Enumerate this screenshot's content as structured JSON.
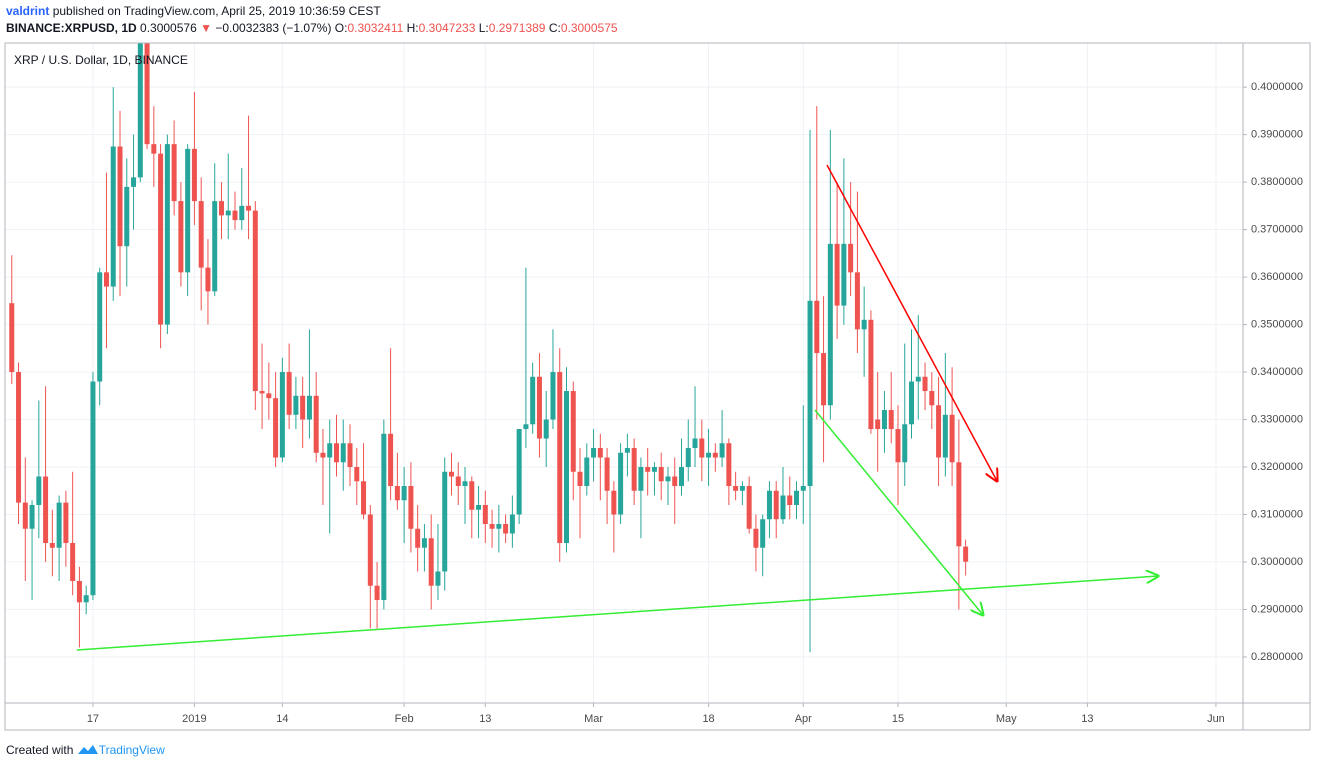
{
  "header": {
    "author": "valdrint",
    "published": "published on TradingView.com, April 25, 2019 10:36:59 CEST",
    "symbol": "BINANCE:XRPUSD, 1D",
    "last": "0.3000576",
    "arrow": "▼",
    "change": "−0.0032383 (−1.07%)",
    "ohlc": [
      {
        "label": "O:",
        "value": "0.3032411"
      },
      {
        "label": "H:",
        "value": "0.3047233"
      },
      {
        "label": "L:",
        "value": "0.2971389"
      },
      {
        "label": "C:",
        "value": "0.3000575"
      }
    ]
  },
  "chart_data": {
    "type": "candlestick",
    "title": "XRP / U.S. Dollar, 1D, BINANCE",
    "up_color": "#26a69a",
    "down_color": "#ef5350",
    "grid": true,
    "xlim": [
      "2018-12-04",
      "2019-06-05"
    ],
    "xticks": [
      {
        "value": "2018-12-17",
        "label": "17"
      },
      {
        "value": "2019-01-01",
        "label": "2019"
      },
      {
        "value": "2019-01-14",
        "label": "14"
      },
      {
        "value": "2019-02-01",
        "label": "Feb"
      },
      {
        "value": "2019-02-13",
        "label": "13"
      },
      {
        "value": "2019-03-01",
        "label": "Mar"
      },
      {
        "value": "2019-03-18",
        "label": "18"
      },
      {
        "value": "2019-04-01",
        "label": "Apr"
      },
      {
        "value": "2019-04-15",
        "label": "15"
      },
      {
        "value": "2019-05-01",
        "label": "May"
      },
      {
        "value": "2019-05-13",
        "label": "13"
      },
      {
        "value": "2019-06-01",
        "label": "Jun"
      }
    ],
    "ylim": [
      0.2703,
      0.4093
    ],
    "yticks": [
      {
        "value": 0.28,
        "label": "0.2800000"
      },
      {
        "value": 0.29,
        "label": "0.2900000"
      },
      {
        "value": 0.3,
        "label": "0.3000000"
      },
      {
        "value": 0.31,
        "label": "0.3100000"
      },
      {
        "value": 0.32,
        "label": "0.3200000"
      },
      {
        "value": 0.33,
        "label": "0.3300000"
      },
      {
        "value": 0.34,
        "label": "0.3400000"
      },
      {
        "value": 0.35,
        "label": "0.3500000"
      },
      {
        "value": 0.36,
        "label": "0.3600000"
      },
      {
        "value": 0.37,
        "label": "0.3700000"
      },
      {
        "value": 0.38,
        "label": "0.3800000"
      },
      {
        "value": 0.39,
        "label": "0.3900000"
      },
      {
        "value": 0.4,
        "label": "0.4000000"
      }
    ],
    "x": [
      "2018-12-05",
      "2018-12-06",
      "2018-12-07",
      "2018-12-08",
      "2018-12-09",
      "2018-12-10",
      "2018-12-11",
      "2018-12-12",
      "2018-12-13",
      "2018-12-14",
      "2018-12-15",
      "2018-12-16",
      "2018-12-17",
      "2018-12-18",
      "2018-12-19",
      "2018-12-20",
      "2018-12-21",
      "2018-12-22",
      "2018-12-23",
      "2018-12-24",
      "2018-12-25",
      "2018-12-26",
      "2018-12-27",
      "2018-12-28",
      "2018-12-29",
      "2018-12-30",
      "2018-12-31",
      "2019-01-01",
      "2019-01-02",
      "2019-01-03",
      "2019-01-04",
      "2019-01-05",
      "2019-01-06",
      "2019-01-07",
      "2019-01-08",
      "2019-01-09",
      "2019-01-10",
      "2019-01-11",
      "2019-01-12",
      "2019-01-13",
      "2019-01-14",
      "2019-01-15",
      "2019-01-16",
      "2019-01-17",
      "2019-01-18",
      "2019-01-19",
      "2019-01-20",
      "2019-01-21",
      "2019-01-22",
      "2019-01-23",
      "2019-01-24",
      "2019-01-25",
      "2019-01-26",
      "2019-01-27",
      "2019-01-28",
      "2019-01-29",
      "2019-01-30",
      "2019-01-31",
      "2019-02-01",
      "2019-02-02",
      "2019-02-03",
      "2019-02-04",
      "2019-02-05",
      "2019-02-06",
      "2019-02-07",
      "2019-02-08",
      "2019-02-09",
      "2019-02-10",
      "2019-02-11",
      "2019-02-12",
      "2019-02-13",
      "2019-02-14",
      "2019-02-15",
      "2019-02-16",
      "2019-02-17",
      "2019-02-18",
      "2019-02-19",
      "2019-02-20",
      "2019-02-21",
      "2019-02-22",
      "2019-02-23",
      "2019-02-24",
      "2019-02-25",
      "2019-02-26",
      "2019-02-27",
      "2019-02-28",
      "2019-03-01",
      "2019-03-02",
      "2019-03-03",
      "2019-03-04",
      "2019-03-05",
      "2019-03-06",
      "2019-03-07",
      "2019-03-08",
      "2019-03-09",
      "2019-03-10",
      "2019-03-11",
      "2019-03-12",
      "2019-03-13",
      "2019-03-14",
      "2019-03-15",
      "2019-03-16",
      "2019-03-17",
      "2019-03-18",
      "2019-03-19",
      "2019-03-20",
      "2019-03-21",
      "2019-03-22",
      "2019-03-23",
      "2019-03-24",
      "2019-03-25",
      "2019-03-26",
      "2019-03-27",
      "2019-03-28",
      "2019-03-29",
      "2019-03-30",
      "2019-03-31",
      "2019-04-01",
      "2019-04-02",
      "2019-04-03",
      "2019-04-04",
      "2019-04-05",
      "2019-04-06",
      "2019-04-07",
      "2019-04-08",
      "2019-04-09",
      "2019-04-10",
      "2019-04-11",
      "2019-04-12",
      "2019-04-13",
      "2019-04-14",
      "2019-04-15",
      "2019-04-16",
      "2019-04-17",
      "2019-04-18",
      "2019-04-19",
      "2019-04-20",
      "2019-04-21",
      "2019-04-22",
      "2019-04-23",
      "2019-04-24",
      "2019-04-25"
    ],
    "open": [
      0.3545,
      0.34,
      0.3125,
      0.307,
      0.312,
      0.318,
      0.304,
      0.303,
      0.3125,
      0.304,
      0.296,
      0.2915,
      0.293,
      0.338,
      0.361,
      0.358,
      0.3875,
      0.3665,
      0.379,
      0.381,
      0.41,
      0.388,
      0.386,
      0.35,
      0.388,
      0.376,
      0.361,
      0.387,
      0.376,
      0.362,
      0.357,
      0.376,
      0.373,
      0.374,
      0.372,
      0.375,
      0.374,
      0.336,
      0.3355,
      0.3345,
      0.322,
      0.34,
      0.331,
      0.335,
      0.33,
      0.335,
      0.323,
      0.322,
      0.325,
      0.321,
      0.325,
      0.32,
      0.317,
      0.31,
      0.295,
      0.292,
      0.327,
      0.316,
      0.313,
      0.316,
      0.307,
      0.303,
      0.305,
      0.295,
      0.298,
      0.319,
      0.318,
      0.316,
      0.317,
      0.311,
      0.312,
      0.308,
      0.307,
      0.308,
      0.306,
      0.31,
      0.328,
      0.329,
      0.339,
      0.326,
      0.33,
      0.34,
      0.304,
      0.336,
      0.319,
      0.316,
      0.322,
      0.324,
      0.322,
      0.315,
      0.31,
      0.323,
      0.324,
      0.315,
      0.32,
      0.319,
      0.32,
      0.317,
      0.318,
      0.316,
      0.32,
      0.324,
      0.326,
      0.322,
      0.323,
      0.322,
      0.325,
      0.316,
      0.315,
      0.316,
      0.307,
      0.303,
      0.309,
      0.315,
      0.309,
      0.314,
      0.312,
      0.315,
      0.316,
      0.355,
      0.344,
      0.333,
      0.367,
      0.354,
      0.367,
      0.361,
      0.349,
      0.351,
      0.33,
      0.328,
      0.332,
      0.328,
      0.321,
      0.329,
      0.338,
      0.339,
      0.336,
      0.333,
      0.322,
      0.331,
      0.321,
      0.3032411
    ],
    "high": [
      0.3646,
      0.342,
      0.322,
      0.313,
      0.334,
      0.337,
      0.311,
      0.314,
      0.315,
      0.319,
      0.299,
      0.295,
      0.34,
      0.362,
      0.382,
      0.4,
      0.395,
      0.385,
      0.39,
      0.411,
      0.412,
      0.396,
      0.388,
      0.39,
      0.393,
      0.38,
      0.388,
      0.399,
      0.381,
      0.368,
      0.384,
      0.38,
      0.386,
      0.378,
      0.383,
      0.394,
      0.376,
      0.346,
      0.342,
      0.34,
      0.343,
      0.346,
      0.339,
      0.339,
      0.349,
      0.34,
      0.328,
      0.33,
      0.331,
      0.33,
      0.329,
      0.324,
      0.325,
      0.312,
      0.3,
      0.33,
      0.345,
      0.323,
      0.32,
      0.321,
      0.312,
      0.308,
      0.31,
      0.308,
      0.322,
      0.323,
      0.321,
      0.32,
      0.318,
      0.316,
      0.315,
      0.311,
      0.312,
      0.31,
      0.314,
      0.328,
      0.362,
      0.342,
      0.344,
      0.336,
      0.349,
      0.345,
      0.341,
      0.338,
      0.324,
      0.325,
      0.328,
      0.327,
      0.324,
      0.317,
      0.325,
      0.327,
      0.326,
      0.322,
      0.324,
      0.321,
      0.323,
      0.32,
      0.322,
      0.326,
      0.33,
      0.337,
      0.33,
      0.328,
      0.325,
      0.332,
      0.326,
      0.319,
      0.317,
      0.318,
      0.31,
      0.31,
      0.317,
      0.317,
      0.32,
      0.318,
      0.317,
      0.333,
      0.391,
      0.396,
      0.356,
      0.391,
      0.38,
      0.385,
      0.38,
      0.378,
      0.358,
      0.353,
      0.34,
      0.336,
      0.34,
      0.333,
      0.346,
      0.349,
      0.352,
      0.342,
      0.34,
      0.339,
      0.344,
      0.341,
      0.33,
      0.3047233
    ],
    "low": [
      0.3375,
      0.308,
      0.296,
      0.292,
      0.305,
      0.3,
      0.297,
      0.296,
      0.299,
      0.293,
      0.282,
      0.289,
      0.292,
      0.333,
      0.345,
      0.355,
      0.356,
      0.358,
      0.37,
      0.38,
      0.387,
      0.379,
      0.345,
      0.348,
      0.373,
      0.358,
      0.356,
      0.371,
      0.353,
      0.35,
      0.356,
      0.368,
      0.368,
      0.37,
      0.37,
      0.368,
      0.332,
      0.328,
      0.33,
      0.32,
      0.321,
      0.328,
      0.328,
      0.324,
      0.326,
      0.321,
      0.312,
      0.306,
      0.318,
      0.315,
      0.316,
      0.312,
      0.309,
      0.286,
      0.286,
      0.29,
      0.313,
      0.311,
      0.304,
      0.302,
      0.298,
      0.298,
      0.29,
      0.292,
      0.294,
      0.314,
      0.312,
      0.308,
      0.305,
      0.305,
      0.304,
      0.303,
      0.302,
      0.304,
      0.303,
      0.308,
      0.324,
      0.327,
      0.322,
      0.32,
      0.328,
      0.3,
      0.302,
      0.313,
      0.305,
      0.314,
      0.317,
      0.313,
      0.308,
      0.302,
      0.308,
      0.318,
      0.312,
      0.305,
      0.314,
      0.314,
      0.313,
      0.312,
      0.308,
      0.314,
      0.317,
      0.32,
      0.317,
      0.316,
      0.319,
      0.32,
      0.312,
      0.313,
      0.312,
      0.306,
      0.298,
      0.297,
      0.305,
      0.305,
      0.308,
      0.309,
      0.309,
      0.308,
      0.281,
      0.33,
      0.321,
      0.33,
      0.347,
      0.35,
      0.356,
      0.344,
      0.339,
      0.327,
      0.319,
      0.323,
      0.325,
      0.312,
      0.316,
      0.326,
      0.33,
      0.332,
      0.328,
      0.316,
      0.318,
      0.316,
      0.29,
      0.2971389
    ],
    "close": [
      0.34,
      0.3125,
      0.307,
      0.312,
      0.318,
      0.304,
      0.303,
      0.3125,
      0.304,
      0.296,
      0.2915,
      0.293,
      0.338,
      0.361,
      0.358,
      0.3875,
      0.3665,
      0.379,
      0.381,
      0.41,
      0.388,
      0.386,
      0.35,
      0.388,
      0.376,
      0.361,
      0.387,
      0.376,
      0.362,
      0.357,
      0.376,
      0.373,
      0.374,
      0.372,
      0.375,
      0.374,
      0.336,
      0.3355,
      0.3345,
      0.322,
      0.34,
      0.331,
      0.335,
      0.33,
      0.335,
      0.323,
      0.322,
      0.325,
      0.321,
      0.325,
      0.32,
      0.317,
      0.31,
      0.295,
      0.292,
      0.327,
      0.316,
      0.313,
      0.316,
      0.307,
      0.303,
      0.305,
      0.295,
      0.298,
      0.319,
      0.318,
      0.316,
      0.317,
      0.311,
      0.312,
      0.308,
      0.307,
      0.308,
      0.306,
      0.31,
      0.328,
      0.329,
      0.339,
      0.326,
      0.33,
      0.34,
      0.304,
      0.336,
      0.319,
      0.316,
      0.322,
      0.324,
      0.322,
      0.315,
      0.31,
      0.323,
      0.324,
      0.315,
      0.32,
      0.319,
      0.32,
      0.317,
      0.318,
      0.316,
      0.32,
      0.324,
      0.326,
      0.322,
      0.323,
      0.322,
      0.325,
      0.316,
      0.315,
      0.316,
      0.307,
      0.303,
      0.309,
      0.315,
      0.309,
      0.314,
      0.312,
      0.315,
      0.316,
      0.355,
      0.344,
      0.333,
      0.367,
      0.354,
      0.367,
      0.361,
      0.349,
      0.351,
      0.328,
      0.328,
      0.332,
      0.328,
      0.321,
      0.329,
      0.338,
      0.339,
      0.336,
      0.333,
      0.322,
      0.331,
      0.321,
      0.3033,
      0.3000575
    ]
  },
  "footer": {
    "text": "Created with",
    "brand": "TradingView"
  }
}
